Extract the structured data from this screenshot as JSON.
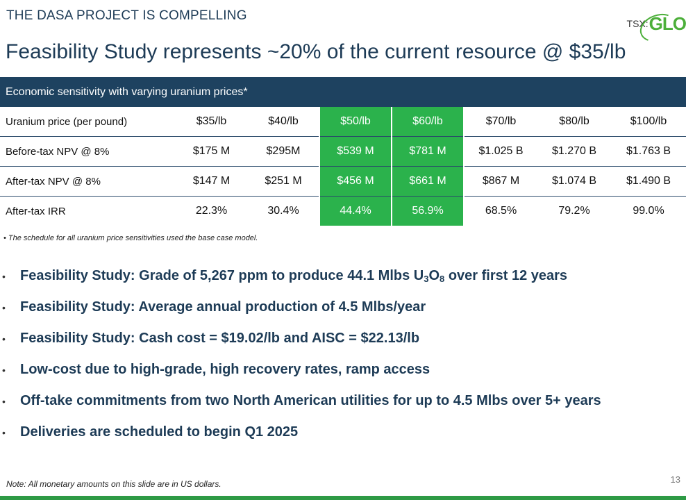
{
  "header": {
    "kicker": "THE DASA PROJECT IS COMPELLING",
    "logo_prefix": "TSX:",
    "logo_name": "GLO"
  },
  "title": "Feasibility Study represents ~20% of the current resource @ $35/lb",
  "table": {
    "caption": "Economic sensitivity with varying uranium prices*",
    "highlight_color": "#2bb24c",
    "header_color": "#1e4260",
    "rows": [
      {
        "label": "Uranium price (per pound)",
        "cells": [
          "$35/lb",
          "$40/lb",
          "$50/lb",
          "$60/lb",
          "$70/lb",
          "$80/lb",
          "$100/lb"
        ]
      },
      {
        "label": "Before-tax NPV @ 8%",
        "cells": [
          "$175 M",
          "$295M",
          "$539 M",
          "$781 M",
          "$1.025 B",
          "$1.270 B",
          "$1.763 B"
        ]
      },
      {
        "label": "After-tax NPV @ 8%",
        "cells": [
          "$147 M",
          "$251 M",
          "$456 M",
          "$661 M",
          "$867 M",
          "$1.074 B",
          "$1.490 B"
        ]
      },
      {
        "label": "After-tax IRR",
        "cells": [
          "22.3%",
          "30.4%",
          "44.4%",
          "56.9%",
          "68.5%",
          "79.2%",
          "99.0%"
        ]
      }
    ],
    "footnote": "• The schedule for all uranium price sensitivities used the base case model."
  },
  "bullets": {
    "b1_prefix": "Feasibility Study:  Grade of 5,267 ppm to produce 44.1 Mlbs U",
    "b1_sub1": "3",
    "b1_mid": "O",
    "b1_sub2": "8",
    "b1_suffix": " over first 12 years",
    "b2": "Feasibility Study:  Average annual production of 4.5 Mlbs/year",
    "b3": "Feasibility Study:  Cash cost = $19.02/lb and AISC = $22.13/lb",
    "b4": "Low-cost due to high-grade, high recovery rates, ramp access",
    "b5": "Off-take commitments from two North American utilities for up to 4.5 Mlbs over 5+ years",
    "b6": "Deliveries are scheduled to begin Q1 2025",
    "marker": "•"
  },
  "note": "Note: All monetary amounts on this slide are in US dollars.",
  "page_number": "13"
}
